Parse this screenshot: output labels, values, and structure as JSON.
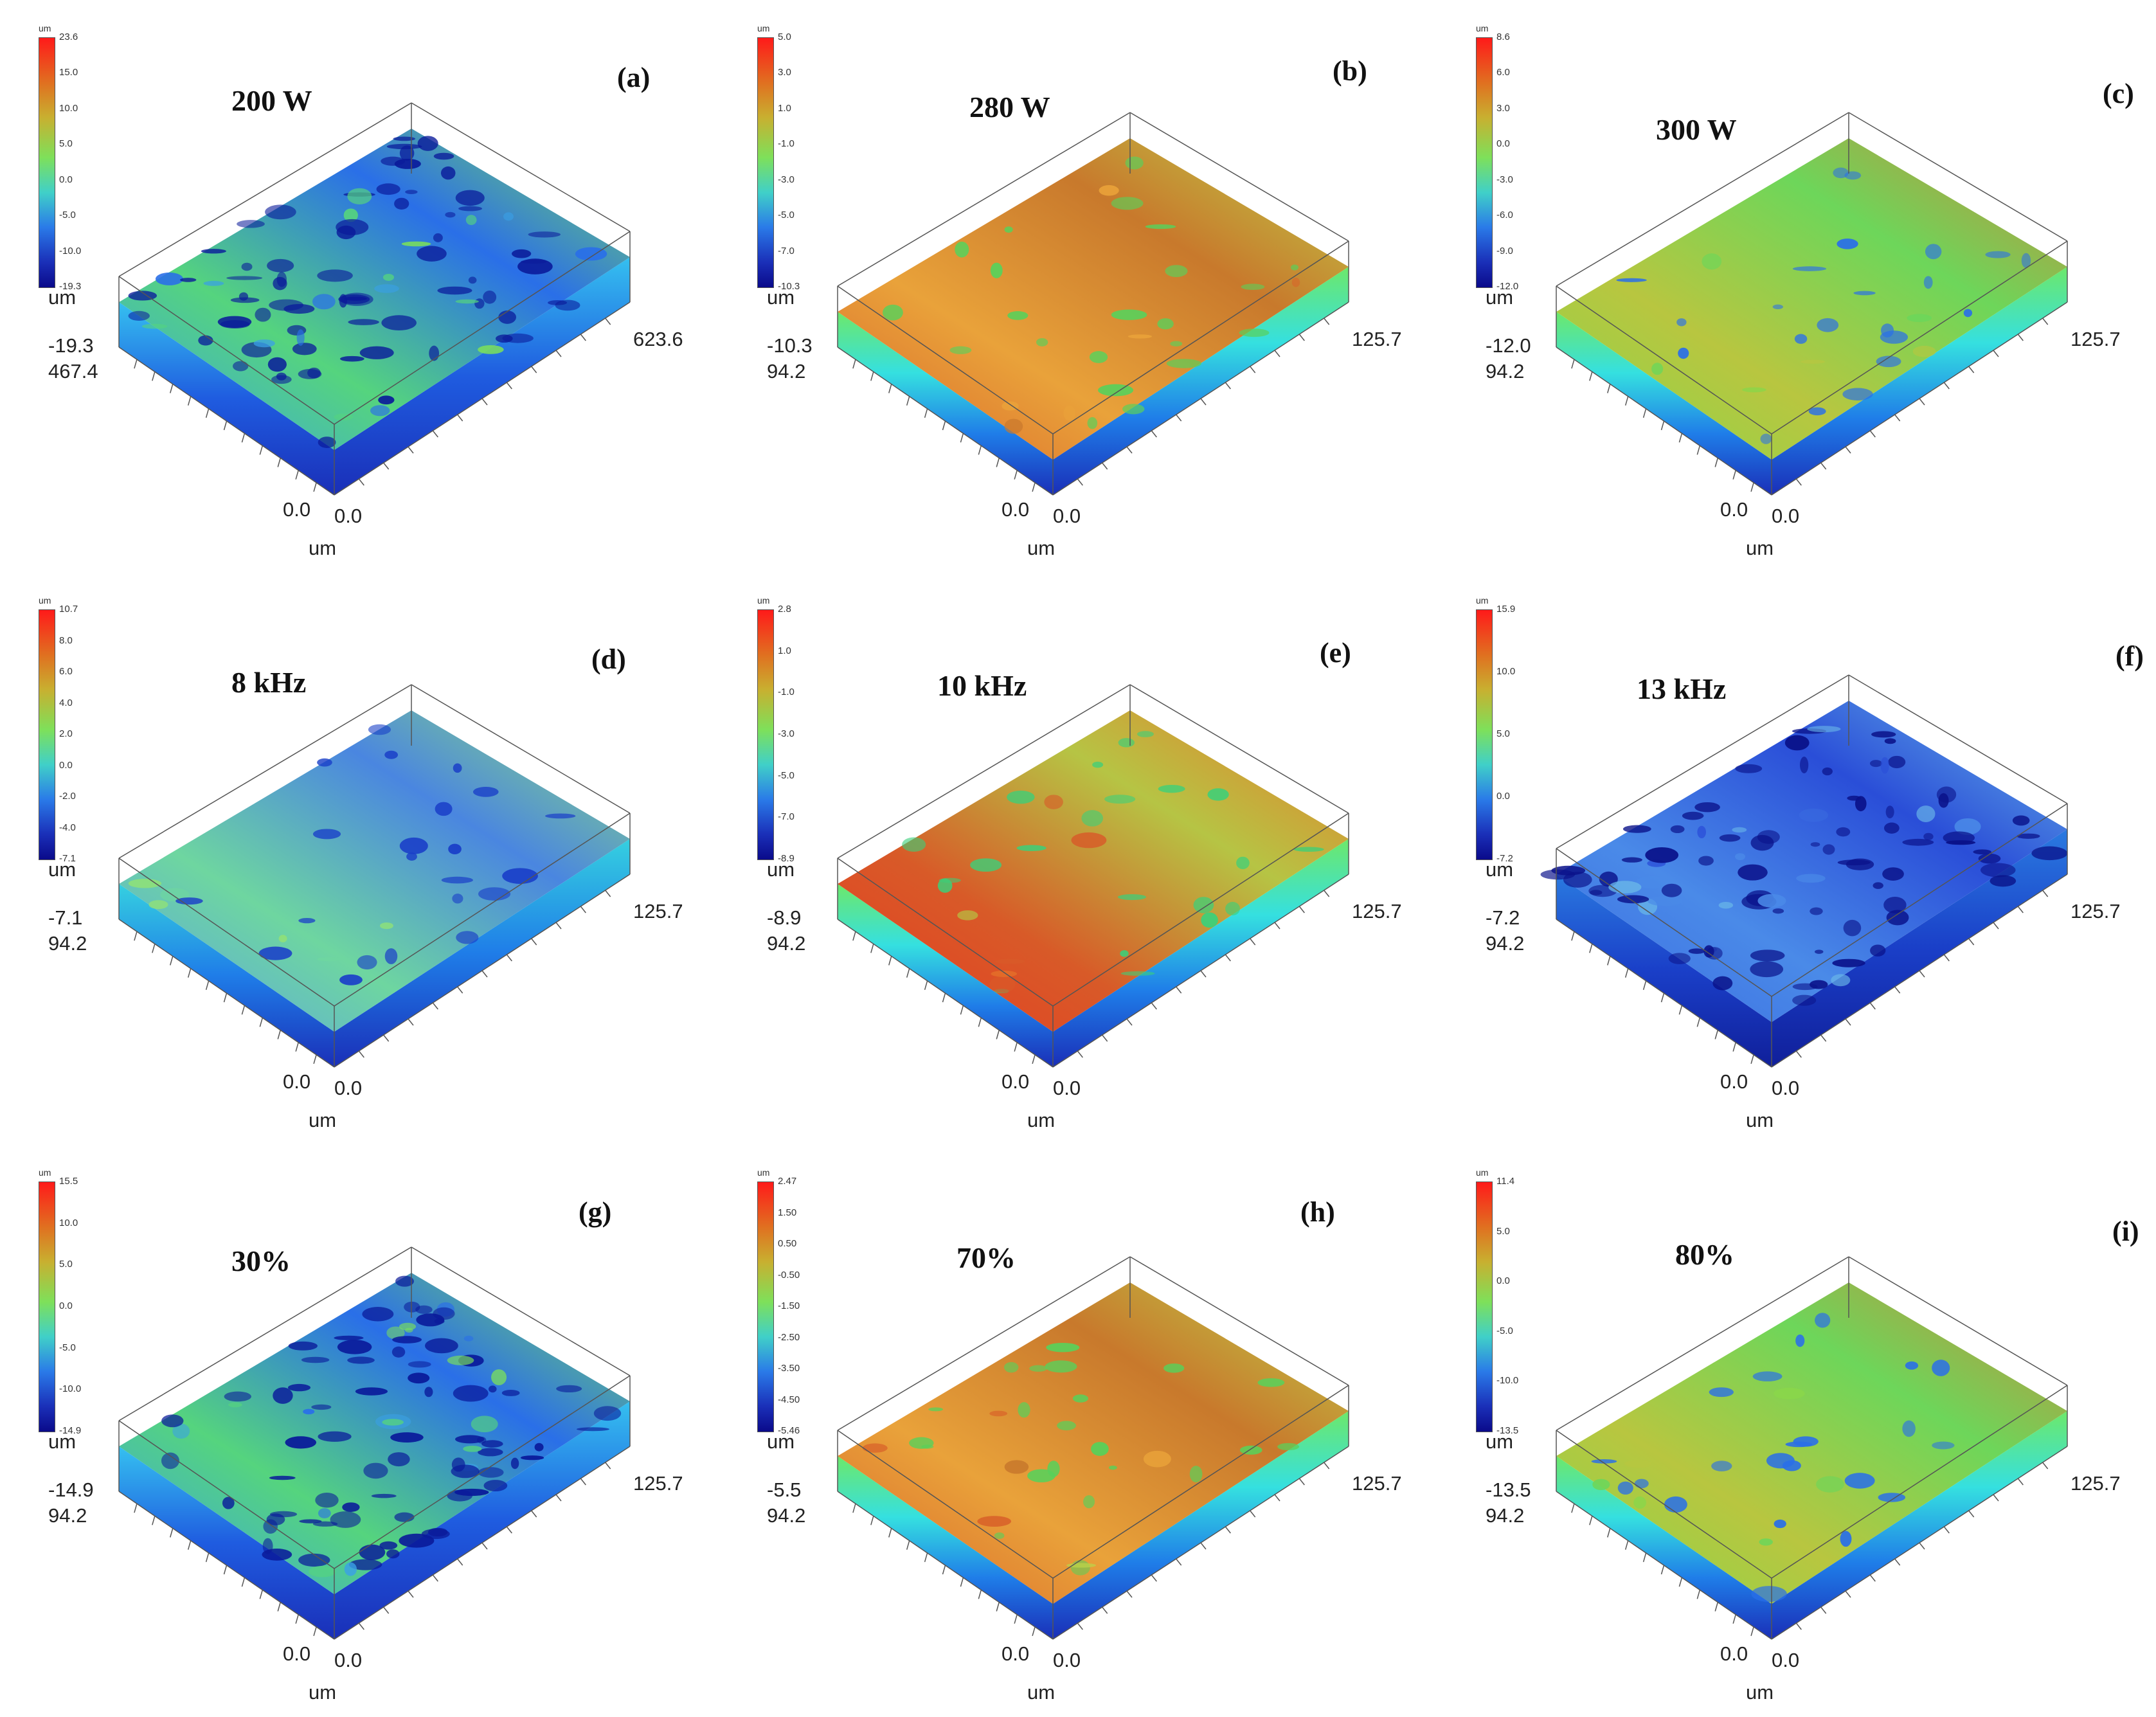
{
  "panels": [
    {
      "label": "(a)",
      "param": "200 W",
      "unit": "um",
      "ticks": [
        "23.6",
        "15.0",
        "10.0",
        "5.0",
        "0.0",
        "-5.0",
        "-10.0",
        "-19.3"
      ],
      "z_unit": "um",
      "z_min": "-19.3",
      "y_max": "467.4",
      "x_max": "623.6",
      "origin_y": "0.0",
      "origin_x": "0.0",
      "x_unit": "um",
      "style": "rough"
    },
    {
      "label": "(b)",
      "param": "280 W",
      "unit": "um",
      "ticks": [
        "5.0",
        "3.0",
        "1.0",
        "-1.0",
        "-3.0",
        "-5.0",
        "-7.0",
        "-10.3"
      ],
      "z_unit": "um",
      "z_min": "-10.3",
      "y_max": "94.2",
      "x_max": "125.7",
      "origin_y": "0.0",
      "origin_x": "0.0",
      "x_unit": "um",
      "style": "orange"
    },
    {
      "label": "(c)",
      "param": "300 W",
      "unit": "um",
      "ticks": [
        "8.6",
        "6.0",
        "3.0",
        "0.0",
        "-3.0",
        "-6.0",
        "-9.0",
        "-12.0"
      ],
      "z_unit": "um",
      "z_min": "-12.0",
      "y_max": "94.2",
      "x_max": "125.7",
      "origin_y": "0.0",
      "origin_x": "0.0",
      "x_unit": "um",
      "style": "green"
    },
    {
      "label": "(d)",
      "param": "8 kHz",
      "unit": "um",
      "ticks": [
        "10.7",
        "8.0",
        "6.0",
        "4.0",
        "2.0",
        "0.0",
        "-2.0",
        "-4.0",
        "-7.1"
      ],
      "z_unit": "um",
      "z_min": "-7.1",
      "y_max": "94.2",
      "x_max": "125.7",
      "origin_y": "0.0",
      "origin_x": "0.0",
      "x_unit": "um",
      "style": "blue"
    },
    {
      "label": "(e)",
      "param": "10 kHz",
      "unit": "um",
      "ticks": [
        "2.8",
        "1.0",
        "-1.0",
        "-3.0",
        "-5.0",
        "-7.0",
        "-8.9"
      ],
      "z_unit": "um",
      "z_min": "-8.9",
      "y_max": "94.2",
      "x_max": "125.7",
      "origin_y": "0.0",
      "origin_x": "0.0",
      "x_unit": "um",
      "style": "red"
    },
    {
      "label": "(f)",
      "param": "13 kHz",
      "unit": "um",
      "ticks": [
        "15.9",
        "10.0",
        "5.0",
        "0.0",
        "-7.2"
      ],
      "z_unit": "um",
      "z_min": "-7.2",
      "y_max": "94.2",
      "x_max": "125.7",
      "origin_y": "0.0",
      "origin_x": "0.0",
      "x_unit": "um",
      "style": "deepblue"
    },
    {
      "label": "(g)",
      "param": "30%",
      "unit": "um",
      "ticks": [
        "15.5",
        "10.0",
        "5.0",
        "0.0",
        "-5.0",
        "-10.0",
        "-14.9"
      ],
      "z_unit": "um",
      "z_min": "-14.9",
      "y_max": "94.2",
      "x_max": "125.7",
      "origin_y": "0.0",
      "origin_x": "0.0",
      "x_unit": "um",
      "style": "rough"
    },
    {
      "label": "(h)",
      "param": "70%",
      "unit": "um",
      "ticks": [
        "2.47",
        "1.50",
        "0.50",
        "-0.50",
        "-1.50",
        "-2.50",
        "-3.50",
        "-4.50",
        "-5.46"
      ],
      "z_unit": "um",
      "z_min": "-5.5",
      "y_max": "94.2",
      "x_max": "125.7",
      "origin_y": "0.0",
      "origin_x": "0.0",
      "x_unit": "um",
      "style": "orange"
    },
    {
      "label": "(i)",
      "param": "80%",
      "unit": "um",
      "ticks": [
        "11.4",
        "5.0",
        "0.0",
        "-5.0",
        "-10.0",
        "-13.5"
      ],
      "z_unit": "um",
      "z_min": "-13.5",
      "y_max": "94.2",
      "x_max": "125.7",
      "origin_y": "0.0",
      "origin_x": "0.0",
      "x_unit": "um",
      "style": "green"
    }
  ]
}
